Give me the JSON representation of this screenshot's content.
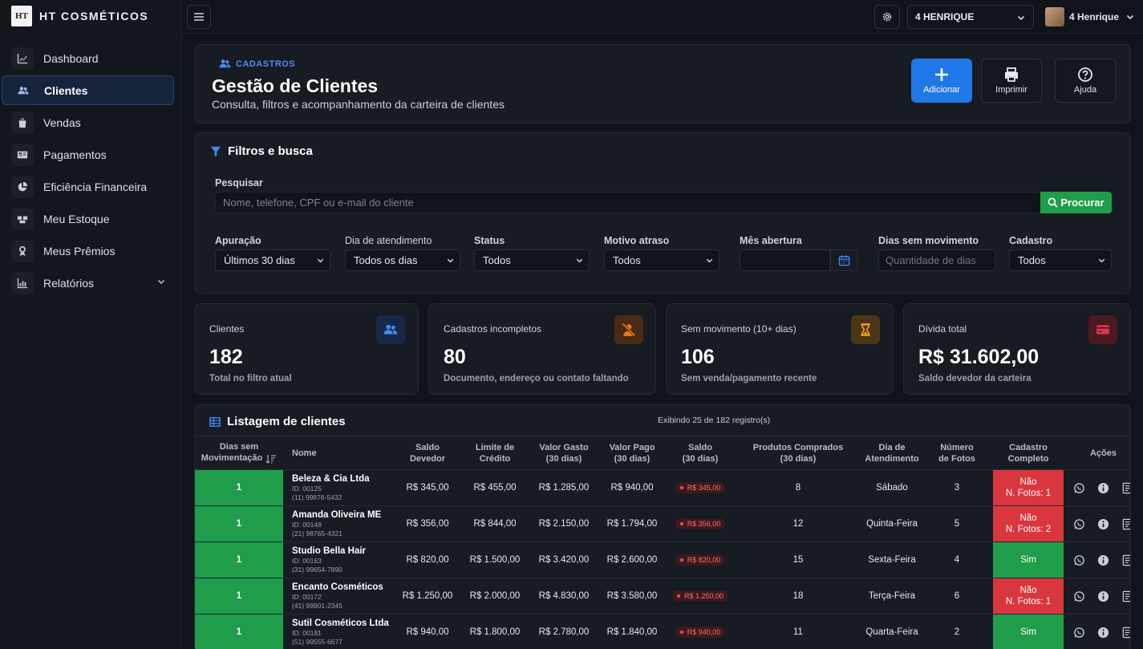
{
  "brand": {
    "logo_text": "HT",
    "name": "HT COSMÉTICOS"
  },
  "sidebar": {
    "items": [
      {
        "label": "Dashboard",
        "icon": "chart-line-icon"
      },
      {
        "label": "Clientes",
        "icon": "users-icon",
        "active": true
      },
      {
        "label": "Vendas",
        "icon": "shopping-bag-icon"
      },
      {
        "label": "Pagamentos",
        "icon": "id-card-icon"
      },
      {
        "label": "Eficiência Financeira",
        "icon": "pie-chart-icon"
      },
      {
        "label": "Meu Estoque",
        "icon": "boxes-icon"
      },
      {
        "label": "Meus Prêmios",
        "icon": "award-icon"
      },
      {
        "label": "Relatórios",
        "icon": "bar-chart-icon",
        "has_submenu": true
      }
    ]
  },
  "topbar": {
    "store": "4 HENRIQUE",
    "user": "4 Henrique"
  },
  "header": {
    "breadcrumb": "CADASTROS",
    "title": "Gestão de Clientes",
    "subtitle": "Consulta, filtros e acompanhamento da carteira de clientes",
    "actions": {
      "add": "Adicionar",
      "print": "Imprimir",
      "help": "Ajuda"
    }
  },
  "filters": {
    "title": "Filtros e busca",
    "search_label": "Pesquisar",
    "search_placeholder": "Nome, telefone, CPF ou e-mail do cliente",
    "search_button": "Procurar",
    "apuracao": {
      "label": "Apuração",
      "value": "Últimos 30 dias"
    },
    "dia_atendimento": {
      "label": "Dia de atendimento",
      "value": "Todos os dias"
    },
    "status": {
      "label": "Status",
      "value": "Todos"
    },
    "motivo": {
      "label": "Motivo atraso",
      "value": "Todos"
    },
    "mes_abertura": {
      "label": "Mês abertura",
      "value": ""
    },
    "dias_sem_mov": {
      "label": "Dias sem movimento",
      "placeholder": "Quantidade de dias"
    },
    "cadastro": {
      "label": "Cadastro",
      "value": "Todos"
    }
  },
  "cards": [
    {
      "label": "Clientes",
      "value": "182",
      "sub": "Total no filtro atual",
      "icon": "users-icon",
      "color": "#2f6fe0"
    },
    {
      "label": "Cadastros incompletos",
      "value": "80",
      "sub": "Documento, endereço ou contato faltando",
      "icon": "user-slash-icon",
      "color": "#f07a1a"
    },
    {
      "label": "Sem movimento (10+ dias)",
      "value": "106",
      "sub": "Sem venda/pagamento recente",
      "icon": "hourglass-icon",
      "color": "#f0a31a"
    },
    {
      "label": "Dívida total",
      "value": "R$ 31.602,00",
      "sub": "Saldo devedor da carteira",
      "icon": "credit-card-icon",
      "color": "#e0364a"
    }
  ],
  "list": {
    "title": "Listagem de clientes",
    "count_text": "Exibindo 25 de 182 registro(s)",
    "columns": {
      "dias_a": "Dias sem",
      "dias_b": "Movimentação",
      "nome": "Nome",
      "saldo_dev_a": "Saldo",
      "saldo_dev_b": "Devedor",
      "limite_a": "Limite de",
      "limite_b": "Crédito",
      "gasto_a": "Valor Gasto",
      "gasto_b": "(30 dias)",
      "pago_a": "Valor Pago",
      "pago_b": "(30 dias)",
      "saldo_a": "Saldo",
      "saldo_b": "(30 dias)",
      "produtos_a": "Produtos Comprados",
      "produtos_b": "(30 dias)",
      "dia_a": "Dia de",
      "dia_b": "Atendimento",
      "fotos_a": "Número",
      "fotos_b": "de Fotos",
      "cad_a": "Cadastro",
      "cad_b": "Completo",
      "acoes": "Ações"
    },
    "rows": [
      {
        "dias": "1",
        "nome": "Beleza & Cia Ltda",
        "id": "ID: 00125",
        "tel": "(11) 99876-5432",
        "saldo_devedor": "R$ 345,00",
        "limite": "R$ 455,00",
        "gasto": "R$ 1.285,00",
        "pago": "R$ 940,00",
        "saldo": "R$ 345,00",
        "produtos": "8",
        "dia": "Sábado",
        "fotos": "3",
        "completo": false,
        "cad_a": "Não",
        "cad_b": "N. Fotos: 1"
      },
      {
        "dias": "1",
        "nome": "Amanda Oliveira ME",
        "id": "ID: 00148",
        "tel": "(21) 98765-4321",
        "saldo_devedor": "R$ 356,00",
        "limite": "R$ 844,00",
        "gasto": "R$ 2.150,00",
        "pago": "R$ 1.794,00",
        "saldo": "R$ 356,00",
        "produtos": "12",
        "dia": "Quinta-Feira",
        "fotos": "5",
        "completo": false,
        "cad_a": "Não",
        "cad_b": "N. Fotos: 2"
      },
      {
        "dias": "1",
        "nome": "Studio Bella Hair",
        "id": "ID: 00163",
        "tel": "(31) 99654-7890",
        "saldo_devedor": "R$ 820,00",
        "limite": "R$ 1.500,00",
        "gasto": "R$ 3.420,00",
        "pago": "R$ 2.600,00",
        "saldo": "R$ 820,00",
        "produtos": "15",
        "dia": "Sexta-Feira",
        "fotos": "4",
        "completo": true,
        "cad_a": "Sim",
        "cad_b": ""
      },
      {
        "dias": "1",
        "nome": "Encanto Cosméticos",
        "id": "ID: 00172",
        "tel": "(41) 99901-2345",
        "saldo_devedor": "R$ 1.250,00",
        "limite": "R$ 2.000,00",
        "gasto": "R$ 4.830,00",
        "pago": "R$ 3.580,00",
        "saldo": "R$ 1.250,00",
        "produtos": "18",
        "dia": "Terça-Feira",
        "fotos": "6",
        "completo": false,
        "cad_a": "Não",
        "cad_b": "N. Fotos: 1"
      },
      {
        "dias": "1",
        "nome": "Sutil Cosméticos Ltda",
        "id": "ID: 00181",
        "tel": "(51) 99555-6677",
        "saldo_devedor": "R$ 940,00",
        "limite": "R$ 1.800,00",
        "gasto": "R$ 2.780,00",
        "pago": "R$ 1.840,00",
        "saldo": "R$ 940,00",
        "produtos": "11",
        "dia": "Quarta-Feira",
        "fotos": "2",
        "completo": true,
        "cad_a": "Sim",
        "cad_b": ""
      }
    ]
  }
}
